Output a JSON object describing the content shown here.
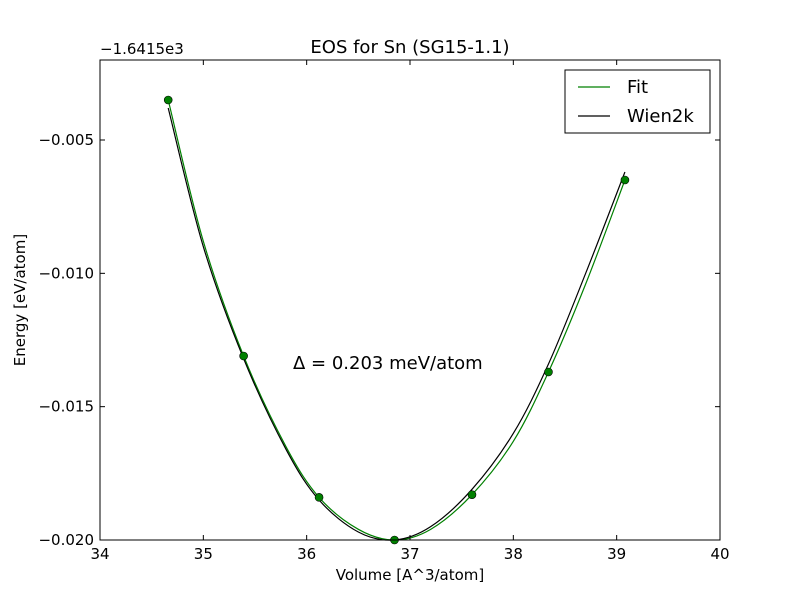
{
  "chart_data": {
    "type": "line",
    "title": "EOS for Sn (SG15-1.1)",
    "xlabel": "Volume [A^3/atom]",
    "ylabel": "Energy [eV/atom]",
    "y_offset_label": "−1.6415e3",
    "xlim": [
      34,
      40
    ],
    "ylim": [
      -0.02,
      -0.002
    ],
    "x_ticks": [
      34,
      35,
      36,
      37,
      38,
      39,
      40
    ],
    "x_tick_labels": [
      "34",
      "35",
      "36",
      "37",
      "38",
      "39",
      "40"
    ],
    "y_ticks": [
      -0.02,
      -0.015,
      -0.01,
      -0.005
    ],
    "y_tick_labels": [
      "−0.020",
      "−0.015",
      "−0.010",
      "−0.005"
    ],
    "grid": false,
    "legend_position": "top-right",
    "annotation": "Δ = 0.203 meV/atom",
    "colors": {
      "fit": "#008000",
      "wien2k": "#000000",
      "points": "#008000"
    },
    "points": {
      "x": [
        34.66,
        35.39,
        36.12,
        36.85,
        37.6,
        38.34,
        39.08
      ],
      "y": [
        -0.0035,
        -0.0131,
        -0.0184,
        -0.02,
        -0.0183,
        -0.0137,
        -0.0065
      ]
    },
    "series": [
      {
        "name": "Fit",
        "x": [
          34.66,
          35.0,
          35.39,
          35.8,
          36.12,
          36.5,
          36.85,
          37.2,
          37.6,
          38.0,
          38.34,
          38.7,
          39.08
        ],
        "y": [
          -0.0035,
          -0.0088,
          -0.0131,
          -0.0165,
          -0.0184,
          -0.0196,
          -0.02,
          -0.0196,
          -0.0183,
          -0.0163,
          -0.0137,
          -0.0104,
          -0.0065
        ]
      },
      {
        "name": "Wien2k",
        "x": [
          34.66,
          35.0,
          35.39,
          35.8,
          36.12,
          36.5,
          36.85,
          37.2,
          37.6,
          38.0,
          38.34,
          38.7,
          39.08
        ],
        "y": [
          -0.0038,
          -0.009,
          -0.0132,
          -0.0166,
          -0.0185,
          -0.0197,
          -0.02,
          -0.0195,
          -0.0181,
          -0.016,
          -0.0134,
          -0.01,
          -0.0062
        ]
      }
    ]
  }
}
